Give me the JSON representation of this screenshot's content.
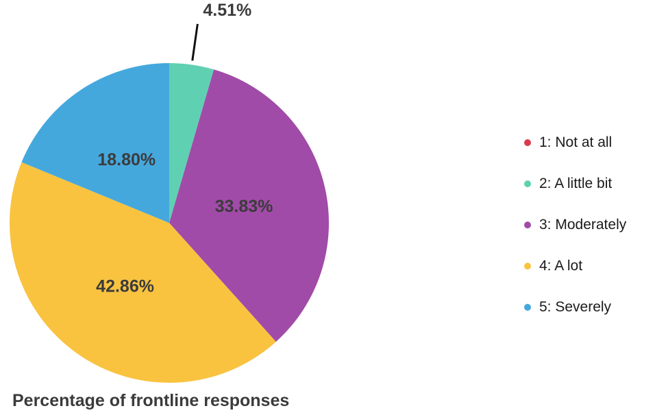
{
  "chart_data": {
    "type": "pie",
    "categories": [
      "1: Not at all",
      "2: A little bit",
      "3: Moderately",
      "4: A lot",
      "5: Severely"
    ],
    "values": [
      0,
      4.51,
      33.83,
      42.86,
      18.8
    ],
    "value_labels": [
      "",
      "4.51%",
      "33.83%",
      "42.86%",
      "18.80%"
    ],
    "colors": [
      "#d93a4f",
      "#5fd1b2",
      "#a14ba8",
      "#f9c340",
      "#45a8dd"
    ],
    "start": "top",
    "direction": "clockwise",
    "legend_position": "right",
    "caption": "Percentage of frontline responses"
  }
}
